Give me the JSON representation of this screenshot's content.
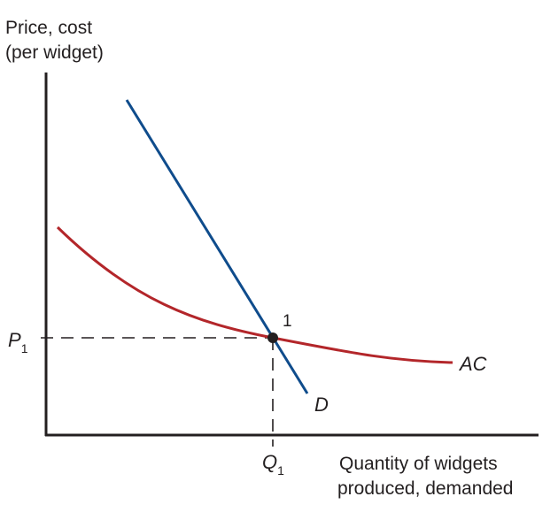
{
  "y_axis": {
    "title_line1": "Price, cost",
    "title_line2": "(per widget)"
  },
  "x_axis": {
    "title_line1": "Quantity of widgets",
    "title_line2": "produced, demanded"
  },
  "curves": {
    "demand": {
      "label": "D",
      "color": "#0f4c8c"
    },
    "average_cost": {
      "label": "AC",
      "color": "#b3262a"
    }
  },
  "equilibrium": {
    "label": "1"
  },
  "price_marker": {
    "letter": "P",
    "subscript": "1"
  },
  "quantity_marker": {
    "letter": "Q",
    "subscript": "1"
  },
  "colors": {
    "axis": "#231f20",
    "point": "#231f20",
    "dashed": "#231f20"
  }
}
